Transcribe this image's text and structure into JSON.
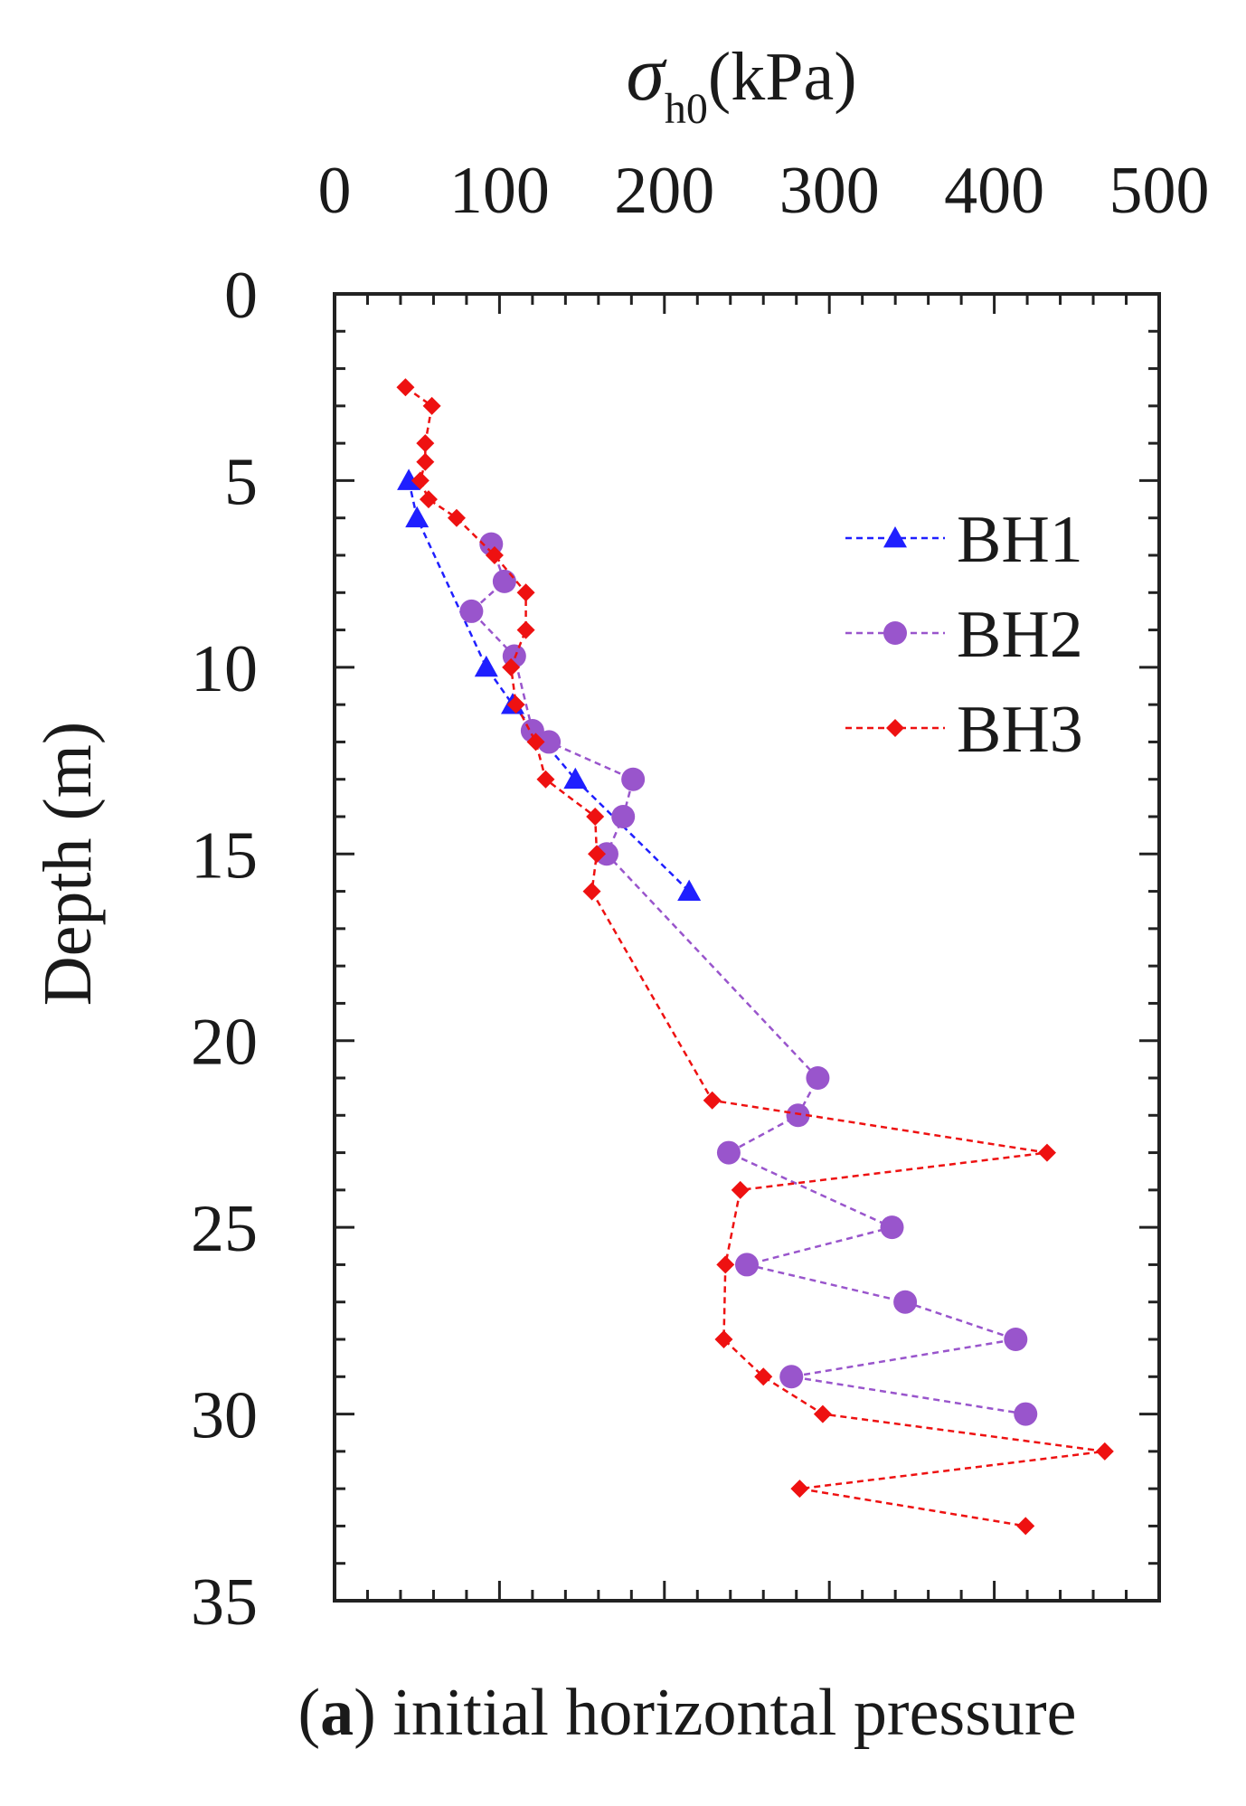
{
  "chart_data": {
    "type": "line",
    "x_axis_label": {
      "symbol": "σ",
      "subscript": "h0",
      "unit": "(kPa)"
    },
    "ylabel": "Depth (m)",
    "xlim": [
      0,
      500
    ],
    "ylim": [
      0,
      35
    ],
    "y_inverted": true,
    "x_axis_position": "top",
    "xticks": [
      0,
      100,
      200,
      300,
      400,
      500
    ],
    "xtick_labels": [
      "0",
      "100",
      "200",
      "300",
      "400",
      "500"
    ],
    "yticks": [
      0,
      5,
      10,
      15,
      20,
      25,
      30,
      35
    ],
    "ytick_labels": [
      "0",
      "5",
      "10",
      "15",
      "20",
      "25",
      "30",
      "35"
    ],
    "legend_position": "top-right",
    "series": [
      {
        "name": "BH1",
        "color": "#1f1fff",
        "marker": "triangle",
        "line_style": "dashed",
        "points": [
          [
            45,
            5
          ],
          [
            50,
            6
          ],
          [
            92,
            10
          ],
          [
            108,
            11
          ],
          [
            146,
            13
          ],
          [
            215,
            16
          ]
        ]
      },
      {
        "name": "BH2",
        "color": "#9955cc",
        "marker": "circle",
        "line_style": "dashed",
        "points": [
          [
            95,
            6.7
          ],
          [
            103,
            7.7
          ],
          [
            83,
            8.5
          ],
          [
            109,
            9.7
          ],
          [
            120,
            11.7
          ],
          [
            130,
            12
          ],
          [
            181,
            13
          ],
          [
            175,
            14
          ],
          [
            165,
            15
          ],
          [
            293,
            21
          ],
          [
            281,
            22
          ],
          [
            239,
            23
          ],
          [
            338,
            25
          ],
          [
            250,
            26
          ],
          [
            346,
            27
          ],
          [
            413,
            28
          ],
          [
            277,
            29
          ],
          [
            419,
            30
          ]
        ]
      },
      {
        "name": "BH3",
        "color": "#ee1111",
        "marker": "diamond",
        "line_style": "dashed",
        "points": [
          [
            43,
            2.5
          ],
          [
            59,
            3
          ],
          [
            55,
            4
          ],
          [
            55,
            4.5
          ],
          [
            52,
            5
          ],
          [
            57,
            5.5
          ],
          [
            74,
            6
          ],
          [
            97,
            7
          ],
          [
            116,
            8
          ],
          [
            116,
            9
          ],
          [
            107,
            10
          ],
          [
            110,
            11
          ],
          [
            122,
            12
          ],
          [
            128,
            13
          ],
          [
            158,
            14
          ],
          [
            159,
            15
          ],
          [
            156,
            16
          ],
          [
            229,
            21.6
          ],
          [
            432,
            23
          ],
          [
            246,
            24
          ],
          [
            237,
            26
          ],
          [
            236,
            28
          ],
          [
            260,
            29
          ],
          [
            296,
            30
          ],
          [
            467,
            31
          ],
          [
            282,
            32
          ],
          [
            419,
            33
          ]
        ]
      }
    ],
    "caption": {
      "open": "(",
      "letter": "a",
      "close": ") initial horizontal pressure"
    }
  }
}
